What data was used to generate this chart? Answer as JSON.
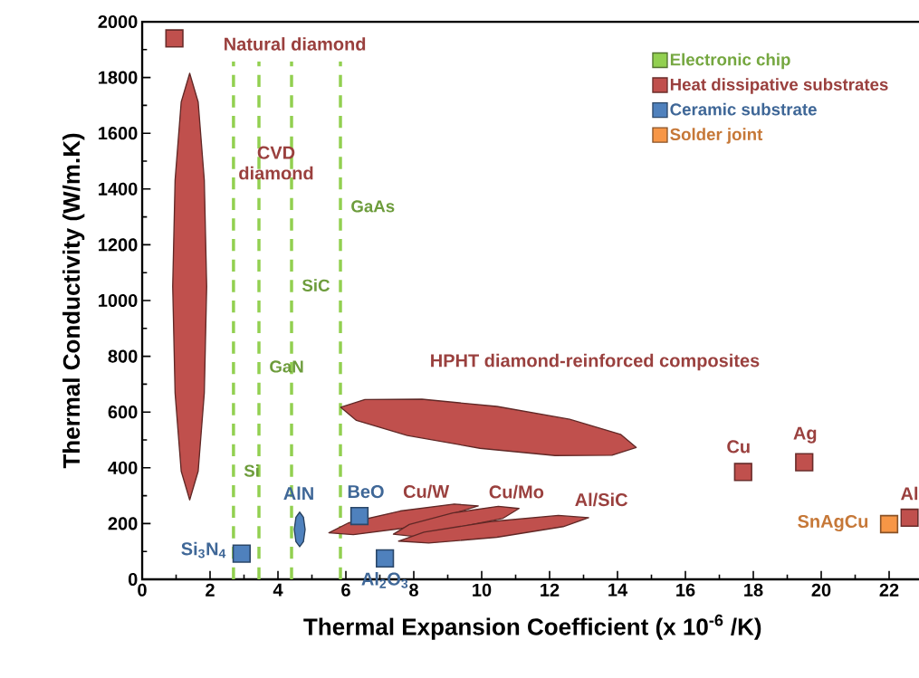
{
  "chart_data": {
    "type": "scatter",
    "xlabel": "Thermal Expansion Coefficient (x 10$^{-6}$ /K)",
    "ylabel": "Thermal Conductivity (W/m.K)",
    "xlim": [
      0,
      23
    ],
    "ylim": [
      0,
      2000
    ],
    "xticks": [
      0,
      2,
      4,
      6,
      8,
      10,
      12,
      14,
      16,
      18,
      20,
      22
    ],
    "yticks": [
      0,
      200,
      400,
      600,
      800,
      1000,
      1200,
      1400,
      1600,
      1800,
      2000
    ],
    "legend": "top right",
    "series": [
      {
        "name": "Electronic chip",
        "type": "line",
        "color": "#92d050",
        "line_style": "dashed",
        "marker": "none",
        "x": [
          2.69,
          2.69,
          2.69,
          null,
          3.44,
          3.44,
          3.44,
          null,
          4.4,
          4.4,
          4.4,
          null,
          5.84,
          5.84,
          5.84
        ],
        "values": [
          0,
          390,
          1857,
          null,
          0,
          763,
          1857,
          null,
          0,
          1055,
          1857,
          null,
          0,
          1338,
          1857
        ],
        "value_labels": [
          null,
          "Si",
          null,
          null,
          null,
          "GaN",
          null,
          null,
          null,
          "SiC",
          null,
          null,
          null,
          "GaAs",
          null
        ]
      },
      {
        "name": "Heat dissipative substrates",
        "color": "#c0504d",
        "marker": "square",
        "x": [
          0.95,
          17.7,
          19.5,
          22.6
        ],
        "values": [
          1940,
          385,
          420,
          221
        ]
      },
      {
        "name": "Ceramic substrate",
        "color": "#4f81bd",
        "marker": "square",
        "x": [
          2.93,
          6.4,
          7.15
        ],
        "values": [
          92,
          227,
          75
        ]
      },
      {
        "name": "Solder joint",
        "color": "#f79646",
        "marker": "square",
        "x": [
          22.0
        ],
        "values": [
          198
        ]
      },
      {
        "type": "area",
        "color": "#c0504d",
        "x": [
          1.4,
          1.65,
          1.83,
          1.9,
          1.83,
          1.65,
          1.4,
          1.15,
          0.97,
          0.9,
          0.97,
          1.15
        ],
        "values": [
          1815,
          1712,
          1432,
          1050,
          668,
          388,
          285,
          388,
          668,
          1050,
          1432,
          1712
        ]
      },
      {
        "type": "area",
        "color": "#c0504d",
        "x": [
          14.55,
          14.09,
          12.59,
          10.45,
          8.24,
          6.56,
          5.85,
          6.31,
          7.81,
          9.95,
          12.16,
          13.84
        ],
        "values": [
          473,
          520,
          574,
          620,
          646,
          645,
          617,
          570,
          516,
          470,
          444,
          445
        ]
      },
      {
        "type": "area",
        "color": "#c0504d",
        "x": [
          9.9,
          7.8,
          6.22,
          5.5,
          6.07,
          7.6,
          9.19
        ],
        "values": [
          263,
          185,
          160,
          167,
          202,
          245,
          270
        ]
      },
      {
        "type": "area",
        "color": "#c0504d",
        "x": [
          11.1,
          10.63,
          8.01,
          7.4,
          7.87,
          9.15,
          10.49
        ],
        "values": [
          254,
          219,
          154,
          162,
          197,
          238,
          262
        ]
      },
      {
        "type": "area",
        "color": "#c0504d",
        "x": [
          13.15,
          12.4,
          10.45,
          8.44,
          7.55,
          8.3,
          10.25,
          12.26
        ],
        "values": [
          221,
          189,
          151,
          130,
          137,
          169,
          207,
          229
        ]
      },
      {
        "type": "area",
        "color": "#4f81bd",
        "x": [
          4.64,
          4.75,
          4.8,
          4.75,
          4.64,
          4.53,
          4.48,
          4.53
        ],
        "values": [
          241,
          223,
          179,
          135,
          117,
          135,
          179,
          223
        ]
      }
    ],
    "annotations": [
      {
        "text": "Natural diamond",
        "x": 0.95,
        "y": 1940
      },
      "CVD diamond",
      {
        "text": "HPHT diamond-reinforced composites",
        "x": 8.24,
        "y": 646
      },
      {
        "text": "Cu/W",
        "x": 9.19,
        "y": 270
      },
      {
        "text": "Cu/Mo",
        "x": 10.49,
        "y": 262
      },
      {
        "text": "Al/SiC",
        "x": 13.15,
        "y": 221
      },
      {
        "text": "Cu",
        "x": 17.7,
        "y": 385
      },
      {
        "text": "Ag",
        "x": 19.5,
        "y": 420
      },
      {
        "text": "Al",
        "x": 22.6,
        "y": 221
      },
      {
        "text": "SnAgCu",
        "x": 22.0,
        "y": 198
      },
      {
        "text": "Si$_{3}$N$_{4}$",
        "x": 2.93,
        "y": 92
      },
      {
        "text": "AlN",
        "x": 4.64,
        "y": 241
      },
      {
        "text": "BeO",
        "x": 6.4,
        "y": 227
      },
      {
        "text": "Al$_{2}$O$_{3}$",
        "x": 7.15,
        "y": 75
      }
    ]
  }
}
